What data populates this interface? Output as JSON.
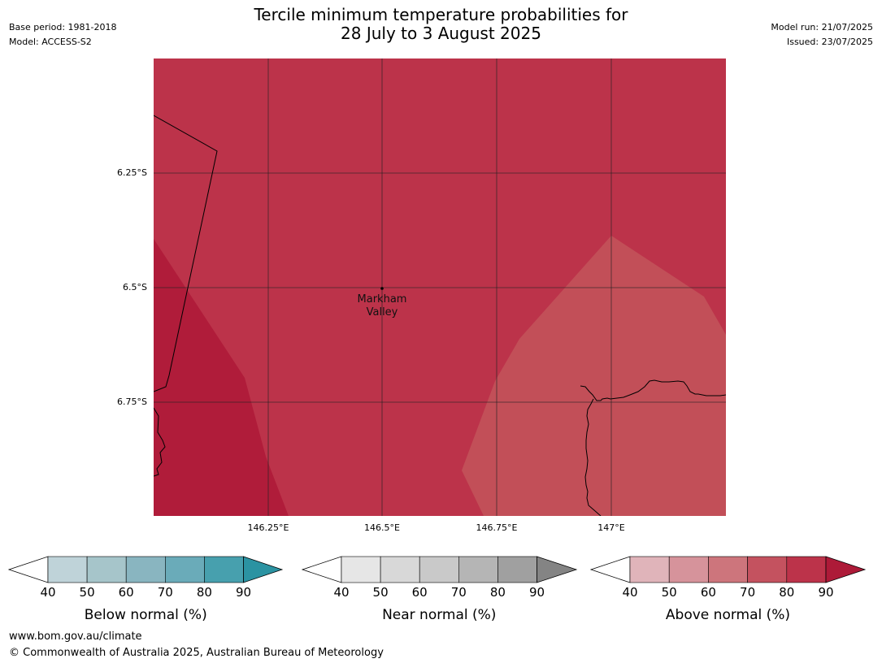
{
  "header": {
    "title_line1": "Tercile minimum temperature probabilities for",
    "title_line2": "28 July to 3 August 2025",
    "base_period": "Base period: 1981-2018",
    "model": "Model: ACCESS-S2",
    "model_run": "Model run: 21/07/2025",
    "issued": "Issued: 23/07/2025"
  },
  "map": {
    "lat_labels": [
      "6.25°S",
      "6.5°S",
      "6.75°S"
    ],
    "lon_labels": [
      "146.25°E",
      "146.5°E",
      "146.75°E",
      "147°E"
    ],
    "place_label_line1": "Markham",
    "place_label_line2": "Valley",
    "zone_colors": {
      "above_70_80": "#c24f58",
      "above_80_90": "#bc334a",
      "above_90_plus": "#b01c3a"
    }
  },
  "legends": [
    {
      "title": "Below normal (%)",
      "ticks": [
        "40",
        "50",
        "60",
        "70",
        "80",
        "90"
      ],
      "colors": [
        "#bfd3d9",
        "#a6c5ca",
        "#89b5c0",
        "#6aabb9",
        "#47a0ae"
      ],
      "arrow_color": "#2b93a2"
    },
    {
      "title": "Near normal (%)",
      "ticks": [
        "40",
        "50",
        "60",
        "70",
        "80",
        "90"
      ],
      "colors": [
        "#e6e6e6",
        "#d8d8d8",
        "#c9c9c9",
        "#b5b5b5",
        "#a0a0a0"
      ],
      "arrow_color": "#848484"
    },
    {
      "title": "Above normal (%)",
      "ticks": [
        "40",
        "50",
        "60",
        "70",
        "80",
        "90"
      ],
      "colors": [
        "#e0b4ba",
        "#d6939b",
        "#cd757c",
        "#c4525f",
        "#bc334a"
      ],
      "arrow_color": "#ad1a38"
    }
  ],
  "footer": {
    "url": "www.bom.gov.au/climate",
    "copyright": "© Commonwealth of Australia 2025, Australian Bureau of Meteorology"
  }
}
